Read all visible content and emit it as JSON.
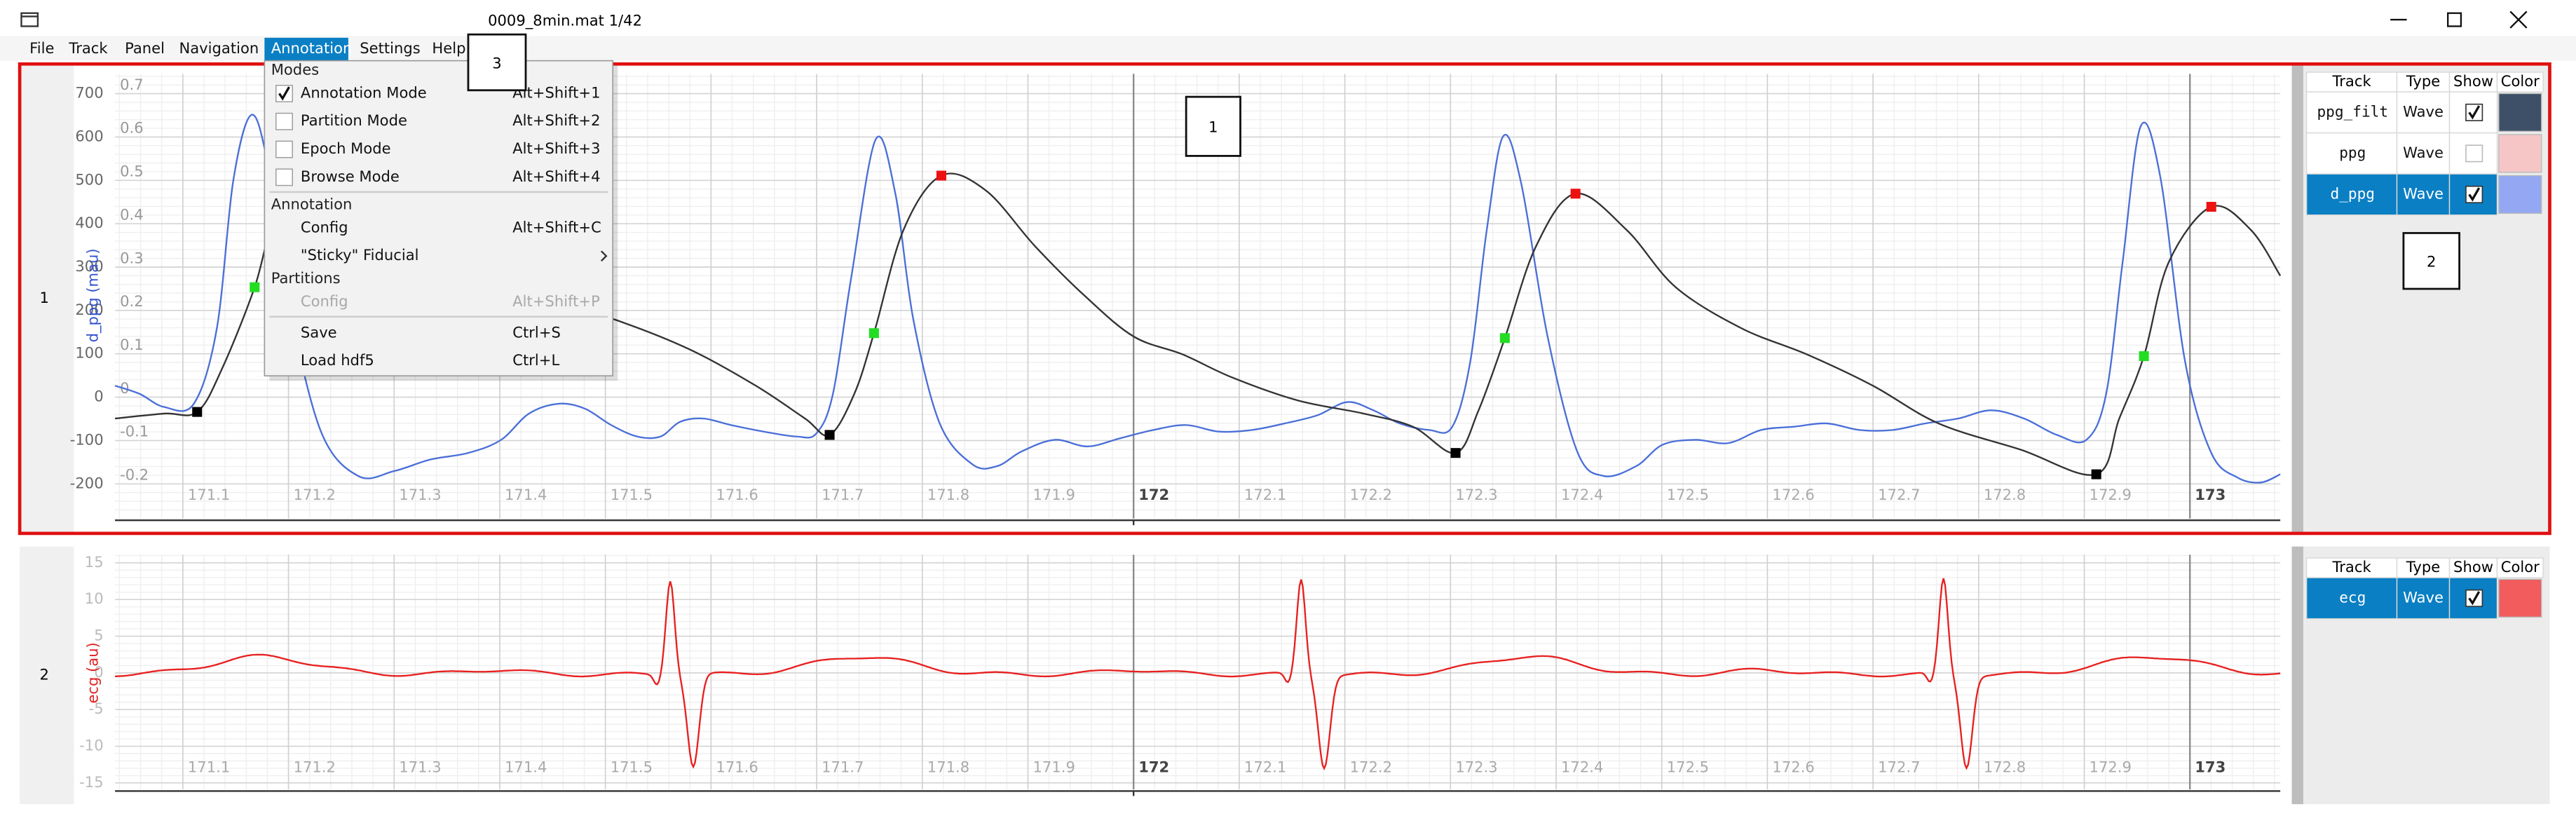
{
  "window": {
    "title": "0009_8min.mat 1/42"
  },
  "menubar": [
    "File",
    "Track",
    "Panel",
    "Navigation",
    "Annotation",
    "Settings",
    "Help"
  ],
  "menu": {
    "sections": [
      {
        "title": "Modes",
        "items": [
          {
            "label": "Annotation Mode",
            "shortcut": "Alt+Shift+1",
            "checked": true
          },
          {
            "label": "Partition Mode",
            "shortcut": "Alt+Shift+2",
            "checked": false
          },
          {
            "label": "Epoch Mode",
            "shortcut": "Alt+Shift+3",
            "checked": false
          },
          {
            "label": "Browse Mode",
            "shortcut": "Alt+Shift+4",
            "checked": false
          }
        ]
      },
      {
        "title": "Annotation",
        "items": [
          {
            "label": "Config",
            "shortcut": "Alt+Shift+C"
          },
          {
            "label": "\"Sticky\" Fiducial",
            "submenu": true
          }
        ]
      },
      {
        "title": "Partitions",
        "items": [
          {
            "label": "Config",
            "shortcut": "Alt+Shift+P",
            "enabled": false
          }
        ]
      },
      {
        "items": [
          {
            "label": "Save",
            "shortcut": "Ctrl+S"
          },
          {
            "label": "Load hdf5",
            "shortcut": "Ctrl+L"
          }
        ]
      }
    ]
  },
  "table_header": [
    "Track",
    "Type",
    "Show",
    "Color"
  ],
  "panels": [
    {
      "id": "1",
      "ylabel": "d_ppg (mau)",
      "yticks": [
        700,
        600,
        500,
        400,
        300,
        200,
        100,
        0,
        -100,
        -200
      ],
      "yticks2": [
        0.7,
        0.6,
        0.5,
        0.4,
        0.3,
        0.2,
        0.1,
        0,
        -0.1,
        -0.2
      ],
      "xticks": [
        171.1,
        171.2,
        171.3,
        171.4,
        171.5,
        171.6,
        171.7,
        171.8,
        171.9,
        172,
        172.1,
        172.2,
        172.3,
        172.4,
        172.5,
        172.6,
        172.7,
        172.8,
        172.9,
        173
      ],
      "tracks": [
        {
          "track": "ppg_filt",
          "type": "Wave",
          "show": true,
          "color": "#3d5068",
          "selected": false
        },
        {
          "track": "ppg",
          "type": "Wave",
          "show": false,
          "color": "#f6c6c6",
          "selected": false
        },
        {
          "track": "d_ppg",
          "type": "Wave",
          "show": true,
          "color": "#94a7f2",
          "selected": true
        }
      ]
    },
    {
      "id": "2",
      "ylabel": "ecg (au)",
      "yticks": [
        15,
        10,
        5,
        0,
        -5,
        -10,
        -15
      ],
      "xticks": [
        171.1,
        171.2,
        171.3,
        171.4,
        171.5,
        171.6,
        171.7,
        171.8,
        171.9,
        172,
        172.1,
        172.2,
        172.3,
        172.4,
        172.5,
        172.6,
        172.7,
        172.8,
        172.9,
        173
      ],
      "tracks": [
        {
          "track": "ecg",
          "type": "Wave",
          "show": true,
          "color": "#f25c5c",
          "selected": true
        }
      ]
    }
  ],
  "callouts": [
    "1",
    "2",
    "3"
  ]
}
